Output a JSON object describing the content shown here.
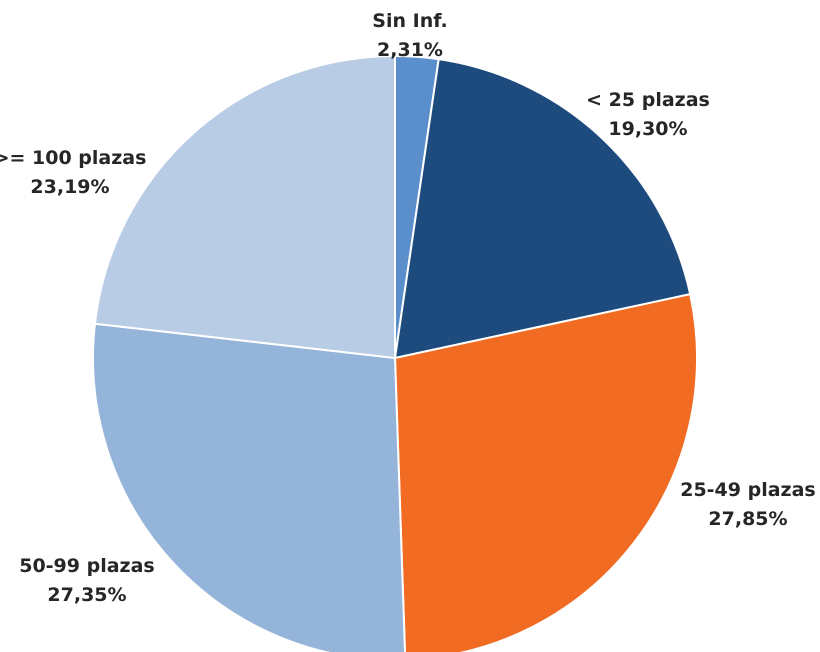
{
  "chart_data": {
    "type": "pie",
    "title": "",
    "slices": [
      {
        "label": "Sin Inf.",
        "value": 2.31,
        "value_label": "2,31%",
        "color": "#5B8FCC"
      },
      {
        "label": "< 25 plazas",
        "value": 19.3,
        "value_label": "19,30%",
        "color": "#1E4B7D"
      },
      {
        "label": "25-49 plazas",
        "value": 27.85,
        "value_label": "27,85%",
        "color": "#F26B22"
      },
      {
        "label": "50-99 plazas",
        "value": 27.35,
        "value_label": "27,35%",
        "color": "#94B4D9"
      },
      {
        "label": ">= 100 plazas",
        "value": 23.19,
        "value_label": "23,19%",
        "color": "#B8CCE6"
      }
    ],
    "start_angle": "top",
    "direction": "clockwise",
    "legend": "none"
  }
}
